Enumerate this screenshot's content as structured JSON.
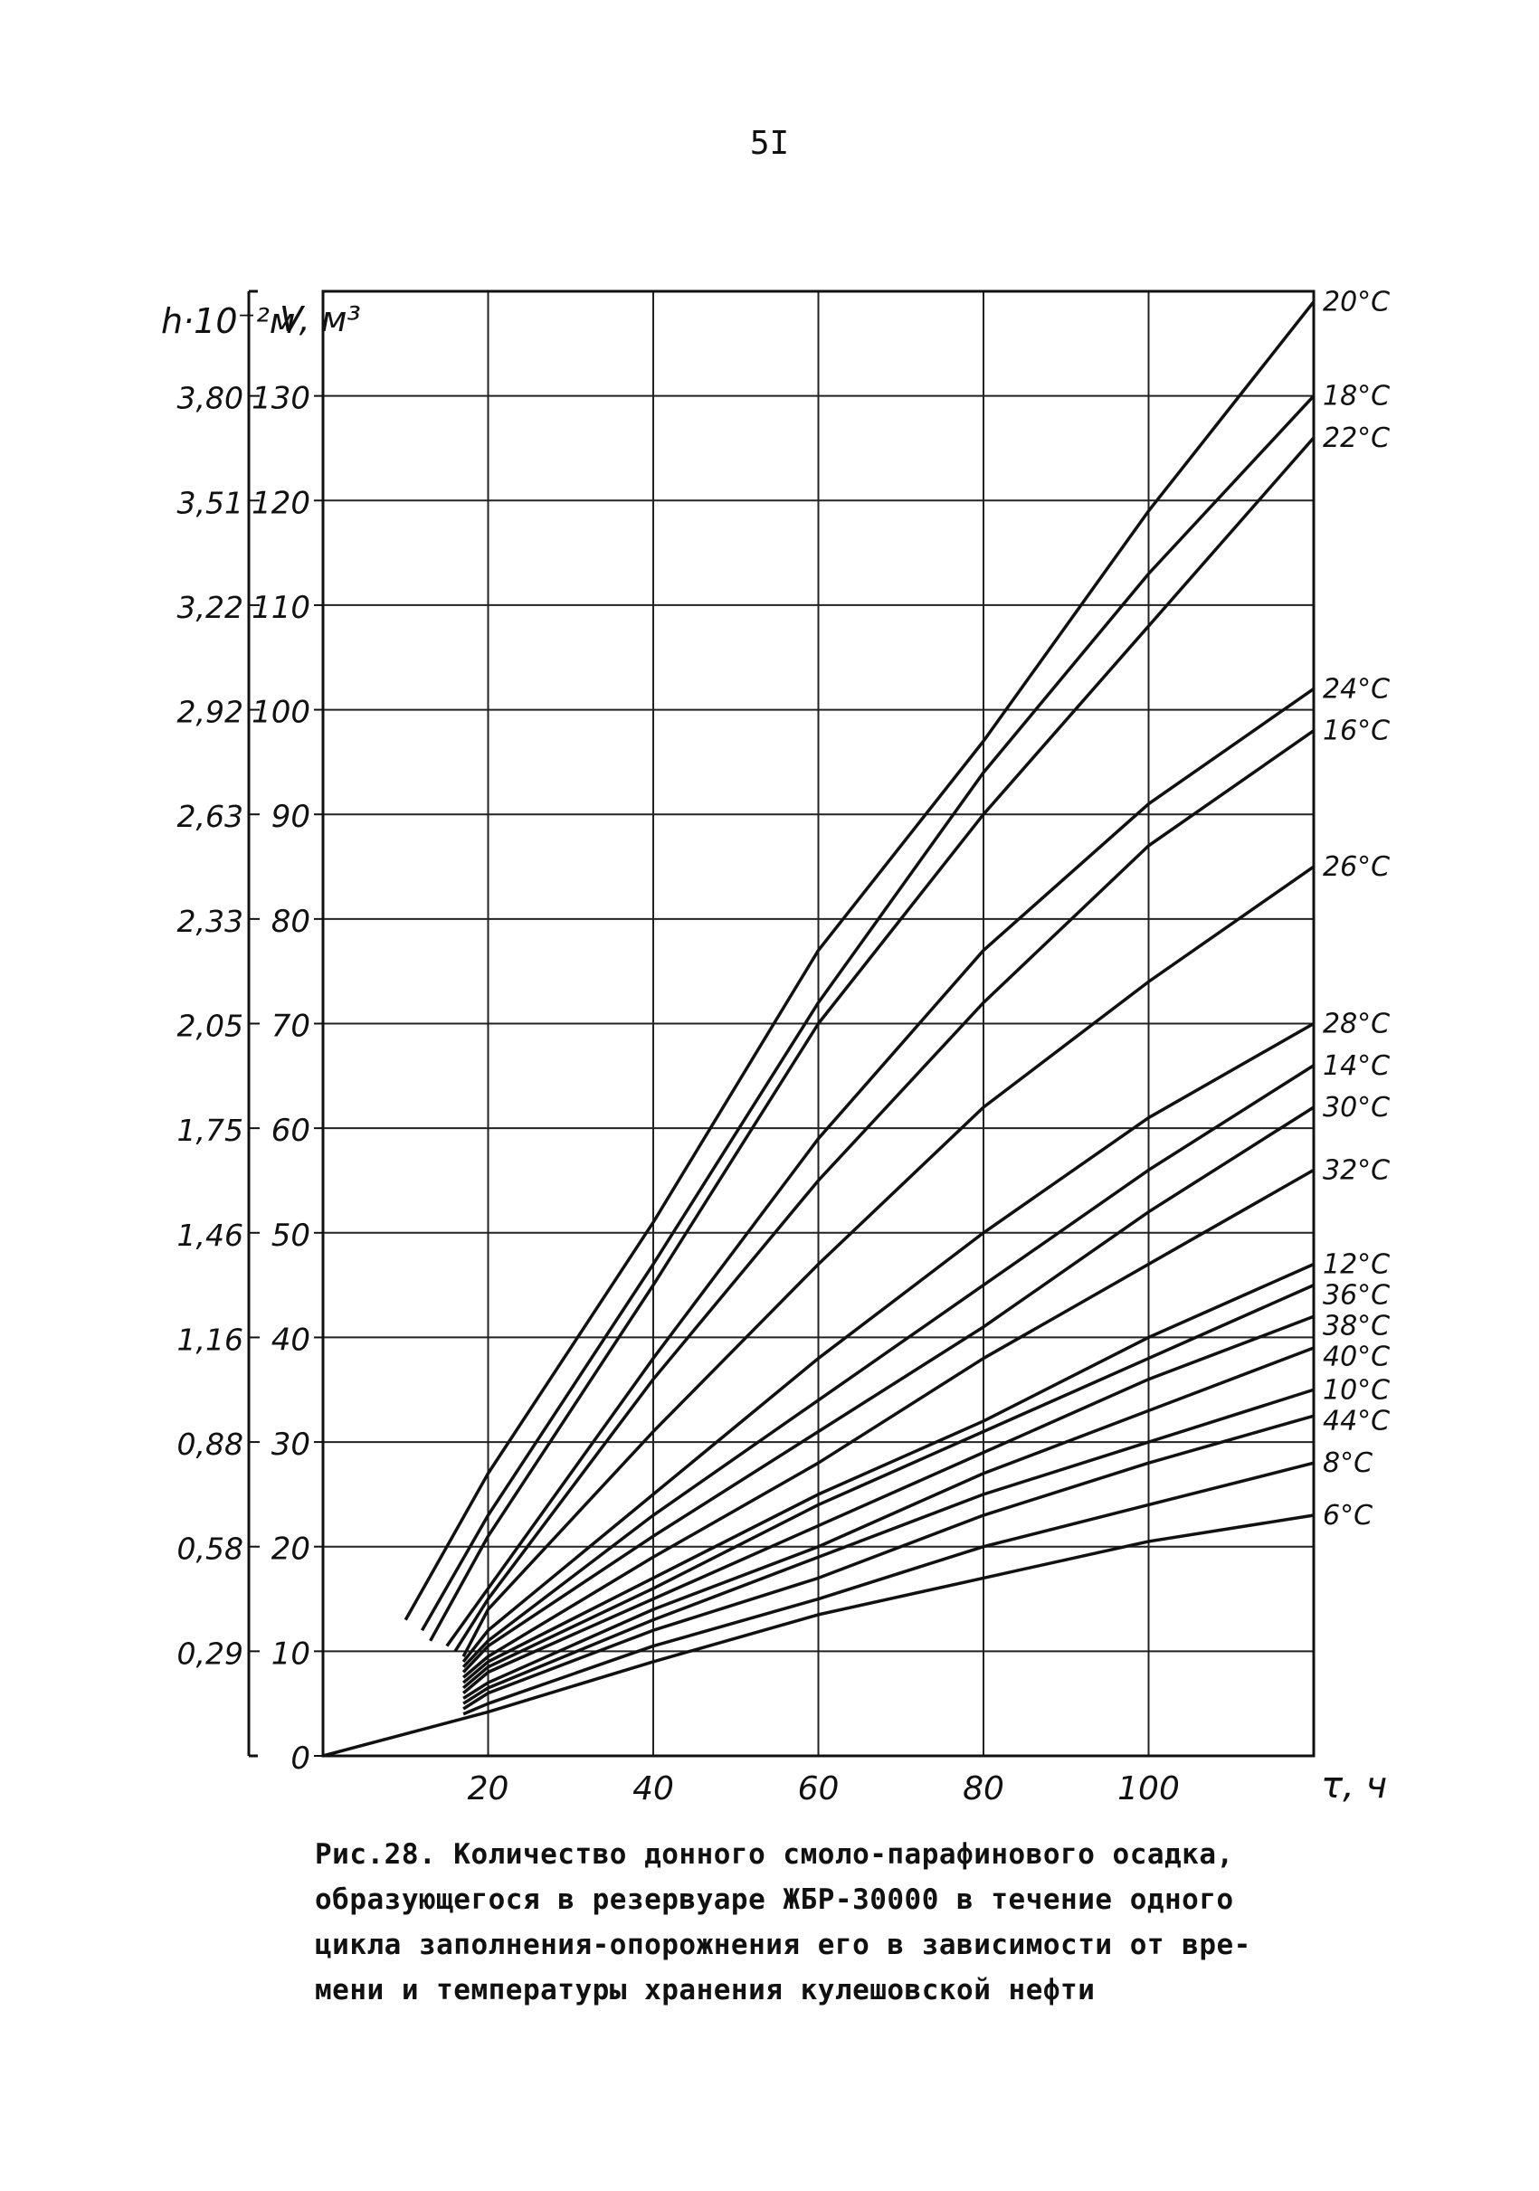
{
  "page_number": "5I",
  "caption": [
    "Рис.28. Количество донного смоло-парафинового осадка,",
    "образующегося в резервуаре ЖБР-30000 в течение одного",
    "цикла заполнения-опорожнения его в зависимости от вре-",
    "мени и температуры хранения кулешовской нефти"
  ],
  "chart_data": {
    "type": "line",
    "x_axis": {
      "label": "τ, ч",
      "range": [
        0,
        120
      ],
      "grid_step": 20,
      "tick_values": [
        20,
        40,
        60,
        80,
        100
      ],
      "tick_labels": [
        "20",
        "40",
        "60",
        "80",
        "100"
      ]
    },
    "y_axis": {
      "label": "V, м³",
      "range": [
        0,
        140
      ],
      "grid_step": 10,
      "tick_values": [
        0,
        10,
        20,
        30,
        40,
        50,
        60,
        70,
        80,
        90,
        100,
        110,
        120,
        130
      ],
      "tick_labels": [
        "0",
        "10",
        "20",
        "30",
        "40",
        "50",
        "60",
        "70",
        "80",
        "90",
        "100",
        "110",
        "120",
        "130"
      ]
    },
    "y2_axis": {
      "label": "h·10⁻²м",
      "tick_values": [
        10,
        20,
        30,
        40,
        50,
        60,
        70,
        80,
        90,
        100,
        110,
        120,
        130
      ],
      "tick_labels": [
        "0,29",
        "0,58",
        "0,88",
        "1,16",
        "1,46",
        "1,75",
        "2,05",
        "2,33",
        "2,63",
        "2,92",
        "3,22",
        "3,51",
        "3,80"
      ]
    },
    "grid": true,
    "series": [
      {
        "name": "20°C",
        "x": [
          10,
          20,
          40,
          60,
          80,
          100,
          120
        ],
        "y": [
          13,
          27,
          51,
          77,
          97,
          119,
          139
        ]
      },
      {
        "name": "18°C",
        "x": [
          12,
          20,
          40,
          60,
          80,
          100,
          120
        ],
        "y": [
          12,
          23,
          47,
          72,
          94,
          113,
          130
        ]
      },
      {
        "name": "22°C",
        "x": [
          13,
          20,
          40,
          60,
          80,
          100,
          120
        ],
        "y": [
          11,
          21,
          45,
          70,
          90,
          108,
          126
        ]
      },
      {
        "name": "24°C",
        "x": [
          15,
          20,
          40,
          60,
          80,
          100,
          120
        ],
        "y": [
          10.5,
          16,
          38,
          59,
          77,
          91,
          102
        ]
      },
      {
        "name": "16°C",
        "x": [
          16,
          20,
          40,
          60,
          80,
          100,
          120
        ],
        "y": [
          10,
          15,
          36,
          55,
          72,
          87,
          98
        ]
      },
      {
        "name": "26°C",
        "x": [
          17,
          20,
          40,
          60,
          80,
          100,
          120
        ],
        "y": [
          9.5,
          14,
          31,
          47,
          62,
          74,
          85
        ]
      },
      {
        "name": "28°C",
        "x": [
          17,
          20,
          40,
          60,
          80,
          100,
          120
        ],
        "y": [
          9,
          12,
          25,
          38,
          50,
          61,
          70
        ]
      },
      {
        "name": "14°C",
        "x": [
          17,
          20,
          40,
          60,
          80,
          100,
          120
        ],
        "y": [
          8.5,
          11,
          23,
          34,
          45,
          56,
          66
        ]
      },
      {
        "name": "30°C",
        "x": [
          17,
          20,
          40,
          60,
          80,
          100,
          120
        ],
        "y": [
          8,
          10.5,
          21,
          31,
          41,
          52,
          62
        ]
      },
      {
        "name": "32°C",
        "x": [
          17,
          20,
          40,
          60,
          80,
          100,
          120
        ],
        "y": [
          7.5,
          9.5,
          19,
          28,
          38,
          47,
          56
        ]
      },
      {
        "name": "12°C",
        "x": [
          17,
          20,
          40,
          60,
          80,
          100,
          120
        ],
        "y": [
          7,
          9,
          17,
          25,
          32,
          40,
          47
        ]
      },
      {
        "name": "36°C",
        "x": [
          17,
          20,
          40,
          60,
          80,
          100,
          120
        ],
        "y": [
          6.5,
          8.5,
          16,
          24,
          31,
          38,
          45
        ]
      },
      {
        "name": "38°C",
        "x": [
          17,
          20,
          40,
          60,
          80,
          100,
          120
        ],
        "y": [
          6,
          8,
          15,
          22,
          29,
          36,
          42
        ]
      },
      {
        "name": "40°C",
        "x": [
          17,
          20,
          40,
          60,
          80,
          100,
          120
        ],
        "y": [
          5.5,
          7,
          14,
          20,
          27,
          33,
          39
        ]
      },
      {
        "name": "10°C",
        "x": [
          17,
          20,
          40,
          60,
          80,
          100,
          120
        ],
        "y": [
          5,
          6.5,
          13,
          19,
          25,
          30,
          35
        ]
      },
      {
        "name": "44°C",
        "x": [
          17,
          20,
          40,
          60,
          80,
          100,
          120
        ],
        "y": [
          4.5,
          6,
          12,
          17,
          23,
          28,
          32.5
        ]
      },
      {
        "name": "8°C",
        "x": [
          17,
          20,
          40,
          60,
          80,
          100,
          120
        ],
        "y": [
          4,
          5,
          10.5,
          15,
          20,
          24,
          28
        ]
      },
      {
        "name": "6°C",
        "x": [
          0,
          20,
          40,
          60,
          80,
          100,
          120
        ],
        "y": [
          0,
          4.2,
          9,
          13.5,
          17,
          20.5,
          23
        ]
      }
    ]
  }
}
